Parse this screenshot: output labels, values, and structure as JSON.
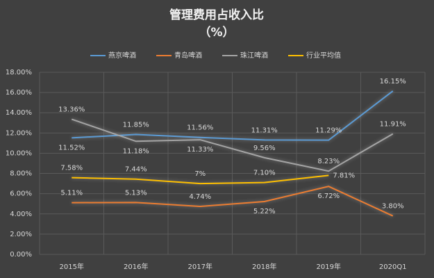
{
  "chart_data": {
    "type": "line",
    "title": "管理费用占收入比",
    "subtitle": "（%）",
    "categories": [
      "2015年",
      "2016年",
      "2017年",
      "2018年",
      "2019年",
      "2020Q1"
    ],
    "ylim": [
      0,
      18
    ],
    "yticks": [
      {
        "value": 0,
        "label": "0.00%"
      },
      {
        "value": 2,
        "label": "2.00%"
      },
      {
        "value": 4,
        "label": "4.00%"
      },
      {
        "value": 6,
        "label": "6.00%"
      },
      {
        "value": 8,
        "label": "8.00%"
      },
      {
        "value": 10,
        "label": "10.00%"
      },
      {
        "value": 12,
        "label": "12.00%"
      },
      {
        "value": 14,
        "label": "14.00%"
      },
      {
        "value": 16,
        "label": "16.00%"
      },
      {
        "value": 18,
        "label": "18.00%"
      }
    ],
    "grid": true,
    "legend": "top",
    "series": [
      {
        "name": "燕京啤酒",
        "color": "#5b9bd5",
        "values": [
          11.52,
          11.85,
          11.56,
          11.31,
          11.29,
          16.15
        ],
        "value_labels": [
          "11.52%",
          "11.85%",
          "11.56%",
          "11.31%",
          "11.29%",
          "16.15%"
        ]
      },
      {
        "name": "青岛啤酒",
        "color": "#ed7d31",
        "values": [
          5.11,
          5.13,
          4.74,
          5.22,
          6.72,
          3.8
        ],
        "value_labels": [
          "5.11%",
          "5.13%",
          "4.74%",
          "5.22%",
          "6.72%",
          "3.80%"
        ]
      },
      {
        "name": "珠江啤酒",
        "color": "#a5a5a5",
        "values": [
          13.36,
          11.18,
          11.33,
          9.56,
          8.23,
          11.91
        ],
        "value_labels": [
          "13.36%",
          "11.18%",
          "11.33%",
          "9.56%",
          "8.23%",
          "11.91%"
        ]
      },
      {
        "name": "行业平均值",
        "color": "#ffc000",
        "values": [
          7.58,
          7.44,
          7,
          7.1,
          7.81,
          null
        ],
        "value_labels": [
          "7.58%",
          "7.44%",
          "7%",
          "7.10%",
          "7.81%",
          null
        ]
      }
    ]
  }
}
